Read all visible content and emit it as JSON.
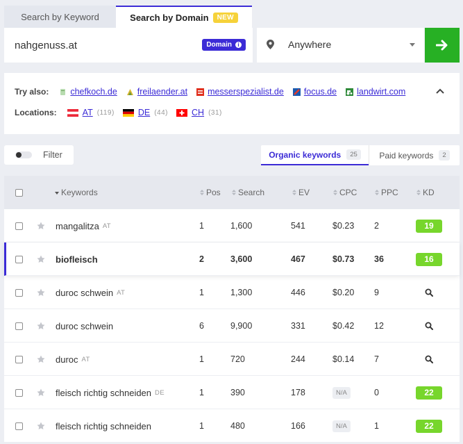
{
  "tabs": {
    "keyword": "Search by Keyword",
    "domain": "Search by Domain",
    "new_badge": "NEW"
  },
  "search": {
    "value": "nahgenuss.at",
    "domain_badge": "Domain"
  },
  "location": {
    "value": "Anywhere"
  },
  "try_also": {
    "label": "Try also:",
    "links": [
      {
        "text": "chefkoch.de",
        "icon": "chefkoch-favicon-icon"
      },
      {
        "text": "freilaender.at",
        "icon": "freilaender-favicon-icon"
      },
      {
        "text": "messerspezialist.de",
        "icon": "messerspezialist-favicon-icon"
      },
      {
        "text": "focus.de",
        "icon": "focus-favicon-icon"
      },
      {
        "text": "landwirt.com",
        "icon": "landwirt-favicon-icon"
      }
    ]
  },
  "locations": {
    "label": "Locations:",
    "items": [
      {
        "code": "AT",
        "count": "(119)"
      },
      {
        "code": "DE",
        "count": "(44)"
      },
      {
        "code": "CH",
        "count": "(31)"
      }
    ]
  },
  "filter": {
    "label": "Filter"
  },
  "keyword_tabs": {
    "organic_label": "Organic keywords",
    "organic_count": "25",
    "paid_label": "Paid keywords",
    "paid_count": "2"
  },
  "table": {
    "headers": {
      "keywords": "Keywords",
      "pos": "Pos",
      "search": "Search",
      "ev": "EV",
      "cpc": "CPC",
      "ppc": "PPC",
      "kd": "KD"
    },
    "rows": [
      {
        "keyword": "mangalitza",
        "loc": "AT",
        "pos": "1",
        "search": "1,600",
        "ev": "541",
        "cpc": "$0.23",
        "ppc": "2",
        "kd": "19"
      },
      {
        "keyword": "biofleisch",
        "loc": "",
        "pos": "2",
        "search": "3,600",
        "ev": "467",
        "cpc": "$0.73",
        "ppc": "36",
        "kd": "16"
      },
      {
        "keyword": "duroc schwein",
        "loc": "AT",
        "pos": "1",
        "search": "1,300",
        "ev": "446",
        "cpc": "$0.20",
        "ppc": "9",
        "kd": ""
      },
      {
        "keyword": "duroc schwein",
        "loc": "",
        "pos": "6",
        "search": "9,900",
        "ev": "331",
        "cpc": "$0.42",
        "ppc": "12",
        "kd": ""
      },
      {
        "keyword": "duroc",
        "loc": "AT",
        "pos": "1",
        "search": "720",
        "ev": "244",
        "cpc": "$0.14",
        "ppc": "7",
        "kd": ""
      },
      {
        "keyword": "fleisch richtig schneiden",
        "loc": "DE",
        "pos": "1",
        "search": "390",
        "ev": "178",
        "cpc": "N/A",
        "ppc": "0",
        "kd": "22"
      },
      {
        "keyword": "fleisch richtig schneiden",
        "loc": "",
        "pos": "1",
        "search": "480",
        "ev": "166",
        "cpc": "N/A",
        "ppc": "1",
        "kd": "22"
      }
    ]
  },
  "colors": {
    "accent": "#3b2bd6",
    "go_button": "#27b024",
    "kd_badge": "#77d62c",
    "new_badge": "#f6d23a"
  }
}
